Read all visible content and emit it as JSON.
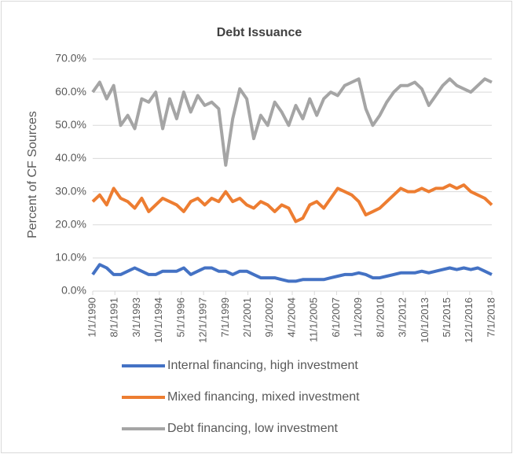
{
  "chart_data": {
    "type": "line",
    "title": "Debt Issuance",
    "ylabel": "Percent of CF Sources",
    "x": [
      "1/1/1990",
      "7/1/1990",
      "1/1/1991",
      "7/1/1991",
      "1/1/1992",
      "7/1/1992",
      "1/1/1993",
      "7/1/1993",
      "1/1/1994",
      "7/1/1994",
      "1/1/1995",
      "7/1/1995",
      "1/1/1996",
      "7/1/1996",
      "1/1/1997",
      "7/1/1997",
      "1/1/1998",
      "7/1/1998",
      "1/1/1999",
      "7/1/1999",
      "1/1/2000",
      "7/1/2000",
      "1/1/2001",
      "7/1/2001",
      "1/1/2002",
      "7/1/2002",
      "1/1/2003",
      "7/1/2003",
      "1/1/2004",
      "7/1/2004",
      "1/1/2005",
      "7/1/2005",
      "1/1/2006",
      "7/1/2006",
      "1/1/2007",
      "7/1/2007",
      "1/1/2008",
      "7/1/2008",
      "1/1/2009",
      "7/1/2009",
      "1/1/2010",
      "7/1/2010",
      "1/1/2011",
      "7/1/2011",
      "1/1/2012",
      "7/1/2012",
      "1/1/2013",
      "7/1/2013",
      "1/1/2014",
      "7/1/2014",
      "1/1/2015",
      "7/1/2015",
      "1/1/2016",
      "7/1/2016",
      "1/1/2017",
      "7/1/2017",
      "1/1/2018",
      "7/1/2018"
    ],
    "series": [
      {
        "name": "Internal financing, high investment",
        "color": "#4472c4",
        "values": [
          5,
          8,
          7,
          5,
          5,
          6,
          7,
          6,
          5,
          5,
          6,
          6,
          6,
          7,
          5,
          6,
          7,
          7,
          6,
          6,
          5,
          6,
          6,
          5,
          4,
          4,
          4,
          3.5,
          3,
          3,
          3.5,
          3.5,
          3.5,
          3.5,
          4,
          4.5,
          5,
          5,
          5.5,
          5,
          4,
          4,
          4.5,
          5,
          5.5,
          5.5,
          5.5,
          6,
          5.5,
          6,
          6.5,
          7,
          6.5,
          7,
          6.5,
          7,
          6,
          5
        ]
      },
      {
        "name": "Mixed financing, mixed investment",
        "color": "#ed7d31",
        "values": [
          27,
          29,
          26,
          31,
          28,
          27,
          25,
          28,
          24,
          26,
          28,
          27,
          26,
          24,
          27,
          28,
          26,
          28,
          27,
          30,
          27,
          28,
          26,
          25,
          27,
          26,
          24,
          26,
          25,
          21,
          22,
          26,
          27,
          25,
          28,
          31,
          30,
          29,
          27,
          23,
          24,
          25,
          27,
          29,
          31,
          30,
          30,
          31,
          30,
          31,
          31,
          32,
          31,
          32,
          30,
          29,
          28,
          26
        ]
      },
      {
        "name": "Debt financing, low investment",
        "color": "#a5a5a5",
        "values": [
          60,
          63,
          58,
          62,
          50,
          53,
          49,
          58,
          57,
          60,
          49,
          58,
          52,
          60,
          54,
          59,
          56,
          57,
          55,
          38,
          52,
          61,
          58,
          46,
          53,
          50,
          57,
          54,
          50,
          56,
          52,
          58,
          53,
          58,
          60,
          59,
          62,
          63,
          64,
          55,
          50,
          53,
          57,
          60,
          62,
          62,
          63,
          61,
          56,
          59,
          62,
          64,
          62,
          61,
          60,
          62,
          64,
          63
        ]
      }
    ],
    "xlim": [
      "1/1/1990",
      "7/1/2018"
    ],
    "xticks": [
      "1/1/1990",
      "8/1/1991",
      "3/1/1993",
      "10/1/1994",
      "5/1/1996",
      "12/1/1997",
      "7/1/1999",
      "2/1/2001",
      "9/1/2002",
      "4/1/2004",
      "11/1/2005",
      "6/1/2007",
      "1/1/2009",
      "8/1/2010",
      "3/1/2012",
      "10/1/2013",
      "5/1/2015",
      "12/1/2016",
      "7/1/2018"
    ],
    "ylim": [
      0,
      70
    ],
    "yticks": [
      {
        "value": 0,
        "label": "0.0%"
      },
      {
        "value": 10,
        "label": "10.0%"
      },
      {
        "value": 20,
        "label": "20.0%"
      },
      {
        "value": 30,
        "label": "30.0%"
      },
      {
        "value": 40,
        "label": "40.0%"
      },
      {
        "value": 50,
        "label": "50.0%"
      },
      {
        "value": 60,
        "label": "60.0%"
      },
      {
        "value": 70,
        "label": "70.0%"
      }
    ],
    "grid": true,
    "legend": "bottom"
  }
}
